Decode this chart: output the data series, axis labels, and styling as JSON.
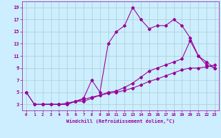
{
  "xlabel": "Windchill (Refroidissement éolien,°C)",
  "background_color": "#cceeff",
  "line_color": "#990099",
  "marker": "D",
  "markersize": 2,
  "linewidth": 0.8,
  "xlim": [
    -0.5,
    23.5
  ],
  "ylim": [
    2.0,
    20.0
  ],
  "xticks": [
    0,
    1,
    2,
    3,
    4,
    5,
    6,
    7,
    8,
    9,
    10,
    11,
    12,
    13,
    14,
    15,
    16,
    17,
    18,
    19,
    20,
    21,
    22,
    23
  ],
  "yticks": [
    3,
    5,
    7,
    9,
    11,
    13,
    15,
    17,
    19
  ],
  "grid_color": "#aacccc",
  "curve1_x": [
    0,
    1,
    2,
    3,
    4,
    5,
    6,
    7,
    8,
    9,
    10,
    11,
    12,
    13,
    14,
    15,
    16,
    17,
    18,
    19,
    20,
    21,
    22,
    23
  ],
  "curve1_y": [
    5,
    3,
    3,
    3,
    3,
    3,
    3.5,
    4,
    7,
    5,
    13,
    15,
    16,
    19,
    17,
    15.5,
    16,
    16,
    17,
    16,
    14,
    11,
    9.5,
    9
  ],
  "curve2_x": [
    0,
    1,
    2,
    3,
    4,
    5,
    6,
    7,
    8,
    9,
    10,
    11,
    12,
    13,
    14,
    15,
    16,
    17,
    18,
    19,
    20,
    21,
    22,
    23
  ],
  "curve2_y": [
    5,
    3,
    3,
    3,
    3,
    3.2,
    3.5,
    3.8,
    4.2,
    4.5,
    4.8,
    5,
    5.3,
    5.7,
    6.2,
    6.8,
    7.2,
    7.7,
    8.2,
    8.7,
    9,
    9,
    9.2,
    9.5
  ],
  "curve3_x": [
    2,
    3,
    4,
    5,
    6,
    7,
    8,
    9,
    10,
    11,
    12,
    13,
    14,
    15,
    16,
    17,
    18,
    19,
    20,
    21,
    22,
    23
  ],
  "curve3_y": [
    3,
    3,
    3,
    3,
    3.5,
    3.5,
    4,
    4.5,
    5,
    5.2,
    5.8,
    6.5,
    7.5,
    8.5,
    9,
    9.5,
    10,
    10.5,
    13.5,
    11,
    10,
    9
  ]
}
